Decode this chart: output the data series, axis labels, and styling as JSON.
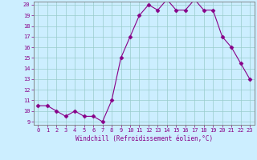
{
  "x": [
    0,
    1,
    2,
    3,
    4,
    5,
    6,
    7,
    8,
    9,
    10,
    11,
    12,
    13,
    14,
    15,
    16,
    17,
    18,
    19,
    20,
    21,
    22,
    23
  ],
  "y": [
    10.5,
    10.5,
    10.0,
    9.5,
    10.0,
    9.5,
    9.5,
    9.0,
    11.0,
    15.0,
    17.0,
    19.0,
    20.0,
    19.5,
    20.5,
    19.5,
    19.5,
    20.5,
    19.5,
    19.5,
    17.0,
    16.0,
    14.5,
    13.0
  ],
  "color": "#880088",
  "bg_color": "#cceeff",
  "grid_color": "#99cccc",
  "xlabel": "Windchill (Refroidissement éolien,°C)",
  "ylim_min": 9,
  "ylim_max": 20,
  "xlim_min": 0,
  "xlim_max": 23,
  "yticks": [
    9,
    10,
    11,
    12,
    13,
    14,
    15,
    16,
    17,
    18,
    19,
    20
  ],
  "xticks": [
    0,
    1,
    2,
    3,
    4,
    5,
    6,
    7,
    8,
    9,
    10,
    11,
    12,
    13,
    14,
    15,
    16,
    17,
    18,
    19,
    20,
    21,
    22,
    23
  ],
  "markersize": 2.5,
  "linewidth": 0.8,
  "tick_fontsize": 5,
  "xlabel_fontsize": 5.5
}
